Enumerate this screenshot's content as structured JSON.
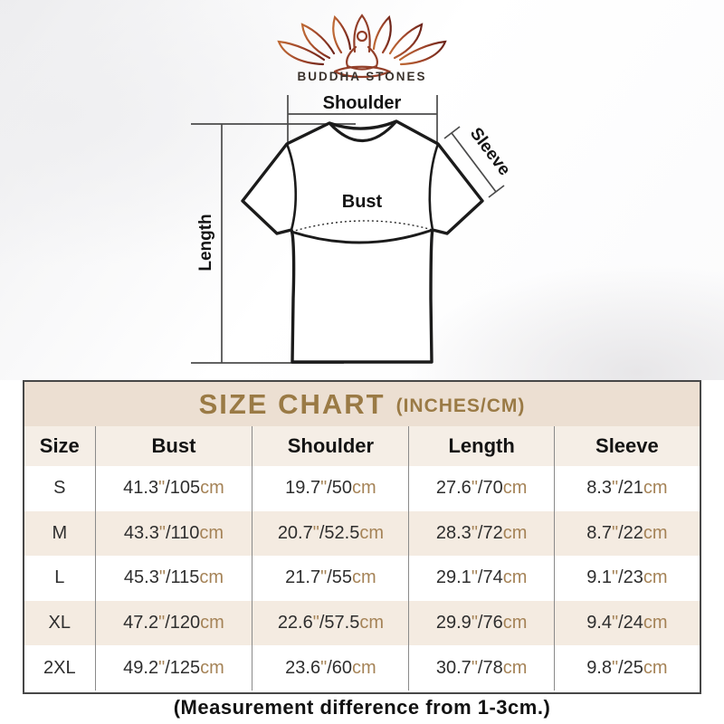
{
  "brand": {
    "name": "BUDDHA STONES",
    "logo_icon": "lotus-meditation-icon"
  },
  "diagram": {
    "labels": {
      "shoulder": "Shoulder",
      "sleeve": "Sleeve",
      "bust": "Bust",
      "length": "Length"
    }
  },
  "size_chart": {
    "title": "SIZE CHART",
    "title_suffix": "(INCHES/CM)",
    "columns": [
      "Size",
      "Bust",
      "Shoulder",
      "Length",
      "Sleeve"
    ],
    "unit_in": "\"",
    "unit_cm": "cm",
    "measure_keys": [
      "bust",
      "shoulder",
      "length",
      "sleeve"
    ],
    "rows": [
      {
        "size": "S",
        "bust": {
          "in": "41.3",
          "cm": "105"
        },
        "shoulder": {
          "in": "19.7",
          "cm": "50"
        },
        "length": {
          "in": "27.6",
          "cm": "70"
        },
        "sleeve": {
          "in": "8.3",
          "cm": "21"
        }
      },
      {
        "size": "M",
        "bust": {
          "in": "43.3",
          "cm": "110"
        },
        "shoulder": {
          "in": "20.7",
          "cm": "52.5"
        },
        "length": {
          "in": "28.3",
          "cm": "72"
        },
        "sleeve": {
          "in": "8.7",
          "cm": "22"
        }
      },
      {
        "size": "L",
        "bust": {
          "in": "45.3",
          "cm": "115"
        },
        "shoulder": {
          "in": "21.7",
          "cm": "55"
        },
        "length": {
          "in": "29.1",
          "cm": "74"
        },
        "sleeve": {
          "in": "9.1",
          "cm": "23"
        }
      },
      {
        "size": "XL",
        "bust": {
          "in": "47.2",
          "cm": "120"
        },
        "shoulder": {
          "in": "22.6",
          "cm": "57.5"
        },
        "length": {
          "in": "29.9",
          "cm": "76"
        },
        "sleeve": {
          "in": "9.4",
          "cm": "24"
        }
      },
      {
        "size": "2XL",
        "bust": {
          "in": "49.2",
          "cm": "125"
        },
        "shoulder": {
          "in": "23.6",
          "cm": "60"
        },
        "length": {
          "in": "30.7",
          "cm": "78"
        },
        "sleeve": {
          "in": "9.8",
          "cm": "25"
        }
      }
    ]
  },
  "footer": {
    "note": "(Measurement difference from 1-3cm.)"
  },
  "colors": {
    "title_band_bg": "#ecdfd2",
    "title_text": "#9a7a45",
    "header_row_bg": "#f5eee6",
    "alt_row_bg": "#f4ebe1",
    "unit_text": "#a58357",
    "table_border": "#474747",
    "shirt_outline": "#1b1b1b",
    "measure_line": "#4b4b4b",
    "lotus_left": "#bf6a35",
    "lotus_right": "#6d241a",
    "brand_text": "#3a322c"
  },
  "chart_data": {
    "type": "table",
    "title": "SIZE CHART (INCHES/CM)",
    "columns": [
      "Size",
      "Bust",
      "Shoulder",
      "Length",
      "Sleeve"
    ],
    "rows": [
      [
        "S",
        "41.3\"/105cm",
        "19.7\"/50cm",
        "27.6\"/70cm",
        "8.3\"/21cm"
      ],
      [
        "M",
        "43.3\"/110cm",
        "20.7\"/52.5cm",
        "28.3\"/72cm",
        "8.7\"/22cm"
      ],
      [
        "L",
        "45.3\"/115cm",
        "21.7\"/55cm",
        "29.1\"/74cm",
        "9.1\"/23cm"
      ],
      [
        "XL",
        "47.2\"/120cm",
        "22.6\"/57.5cm",
        "29.9\"/76cm",
        "9.4\"/24cm"
      ],
      [
        "2XL",
        "49.2\"/125cm",
        "23.6\"/60cm",
        "30.7\"/78cm",
        "9.8\"/25cm"
      ]
    ],
    "note": "(Measurement difference from 1-3cm.)"
  }
}
